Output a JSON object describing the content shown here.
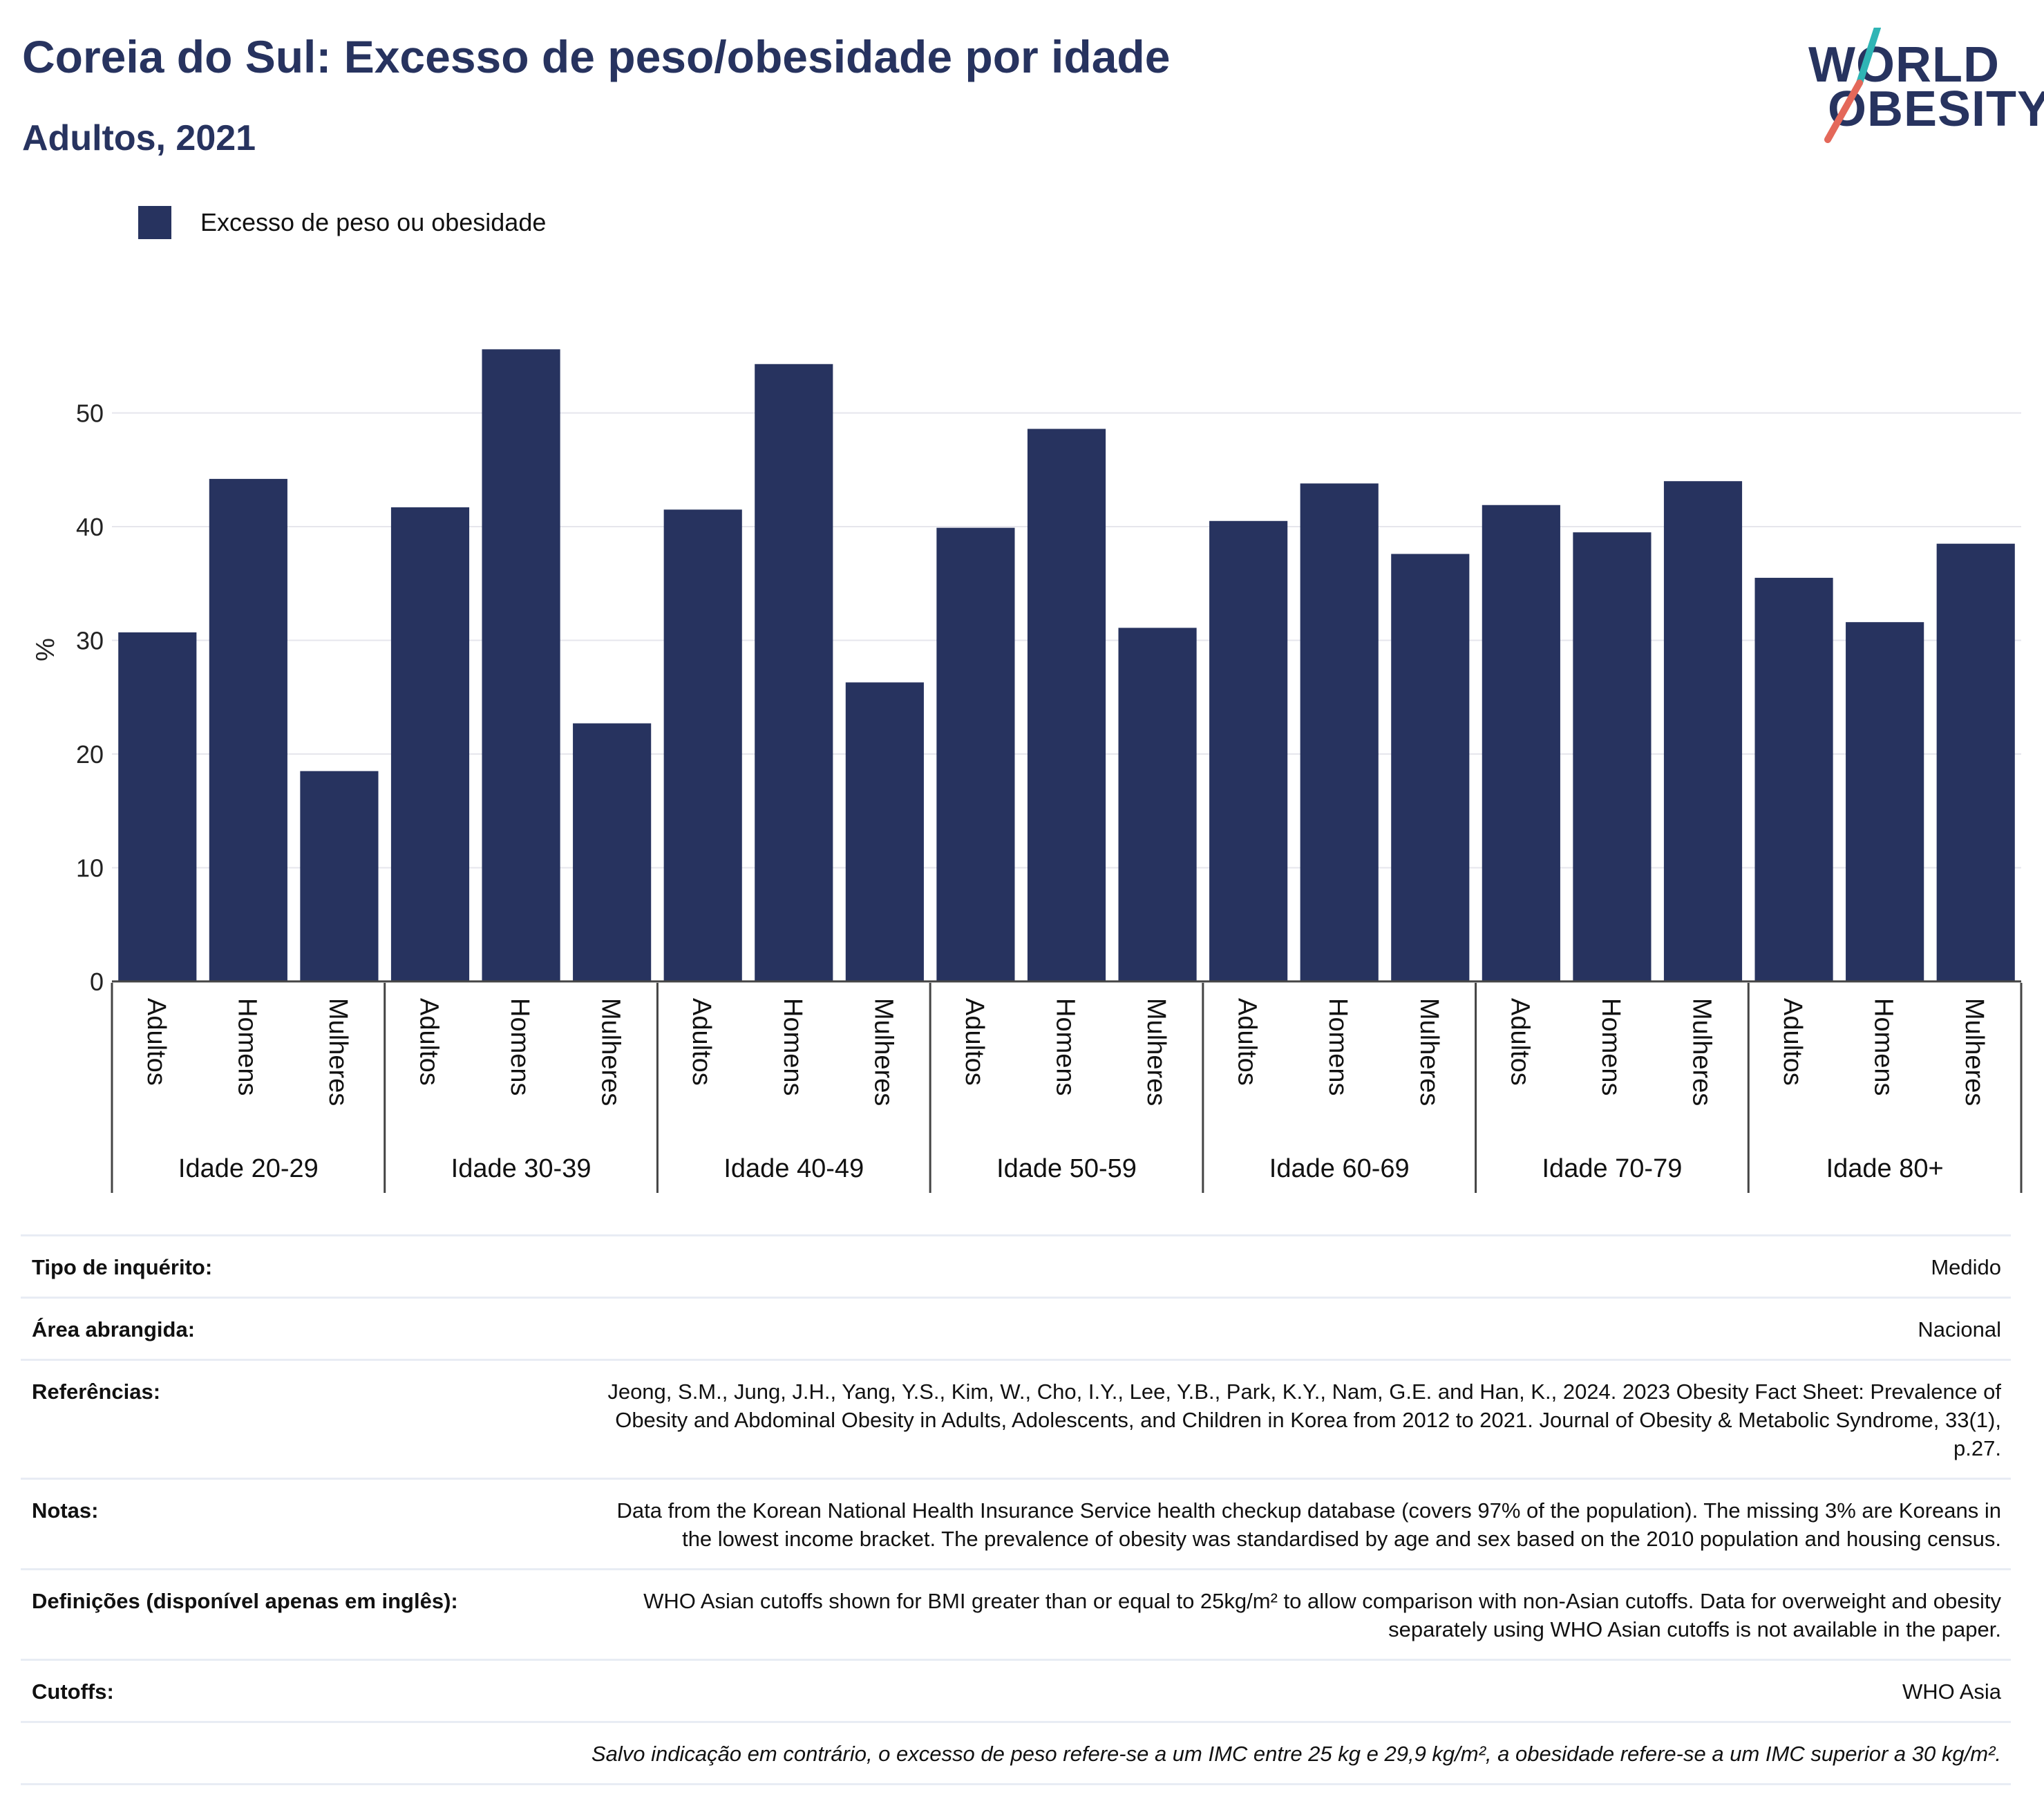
{
  "header": {
    "title": "Coreia do Sul: Excesso de peso/obesidade por idade",
    "subtitle": "Adultos, 2021"
  },
  "logo": {
    "line1": "WORLD",
    "line2": "OBESITY",
    "colors": {
      "text": "#27335f",
      "teal": "#2fb5b5",
      "coral": "#e4685a"
    }
  },
  "legend": {
    "label": "Excesso de peso ou obesidade",
    "color": "#27335f"
  },
  "chart_data": {
    "type": "bar",
    "title": "Coreia do Sul: Excesso de peso/obesidade por idade",
    "subtitle": "Adultos, 2021",
    "ylabel": "%",
    "ylim": [
      0,
      58
    ],
    "yticks": [
      0,
      10,
      20,
      30,
      40,
      50
    ],
    "grid": true,
    "legend_position": "top-left",
    "bar_color": "#27335f",
    "groups": [
      {
        "label": "Idade 20-29",
        "categories": [
          "Adultos",
          "Homens",
          "Mulheres"
        ],
        "values": [
          30.7,
          44.2,
          18.5
        ]
      },
      {
        "label": "Idade 30-39",
        "categories": [
          "Adultos",
          "Homens",
          "Mulheres"
        ],
        "values": [
          41.7,
          55.6,
          22.7
        ]
      },
      {
        "label": "Idade 40-49",
        "categories": [
          "Adultos",
          "Homens",
          "Mulheres"
        ],
        "values": [
          41.5,
          54.3,
          26.3
        ]
      },
      {
        "label": "Idade 50-59",
        "categories": [
          "Adultos",
          "Homens",
          "Mulheres"
        ],
        "values": [
          39.9,
          48.6,
          31.1
        ]
      },
      {
        "label": "Idade 60-69",
        "categories": [
          "Adultos",
          "Homens",
          "Mulheres"
        ],
        "values": [
          40.5,
          43.8,
          37.6
        ]
      },
      {
        "label": "Idade 70-79",
        "categories": [
          "Adultos",
          "Homens",
          "Mulheres"
        ],
        "values": [
          41.9,
          39.5,
          44.0
        ]
      },
      {
        "label": "Idade 80+",
        "categories": [
          "Adultos",
          "Homens",
          "Mulheres"
        ],
        "values": [
          35.5,
          31.6,
          38.5
        ]
      }
    ],
    "series": [
      {
        "name": "Excesso de peso ou obesidade"
      }
    ]
  },
  "metadata": [
    {
      "key": "Tipo de inquérito:",
      "value": "Medido"
    },
    {
      "key": "Área abrangida:",
      "value": "Nacional"
    },
    {
      "key": "Referências:",
      "value": "Jeong, S.M., Jung, J.H., Yang, Y.S., Kim, W., Cho, I.Y., Lee, Y.B., Park, K.Y., Nam, G.E. and Han, K., 2024. 2023 Obesity Fact Sheet: Prevalence of Obesity and Abdominal Obesity in Adults, Adolescents, and Children in Korea from 2012 to 2021. Journal of Obesity & Metabolic Syndrome, 33(1), p.27."
    },
    {
      "key": "Notas:",
      "value": "Data from the Korean National Health Insurance Service health checkup database (covers 97% of the population). The missing 3% are Koreans in the lowest income bracket. The prevalence of obesity was standardised by age and sex based on the 2010 population and housing census."
    },
    {
      "key": "Definições (disponível apenas em inglês):",
      "value": "WHO Asian cutoffs shown for BMI greater than or equal to 25kg/m² to allow comparison with non-Asian cutoffs. Data for overweight and obesity separately using WHO Asian cutoffs is not available in the paper."
    },
    {
      "key": "Cutoffs:",
      "value": "WHO Asia"
    }
  ],
  "footnote": "Salvo indicação em contrário, o excesso de peso refere-se a um IMC entre 25 kg e 29,9 kg/m², a obesidade refere-se a um IMC superior a 30 kg/m²."
}
